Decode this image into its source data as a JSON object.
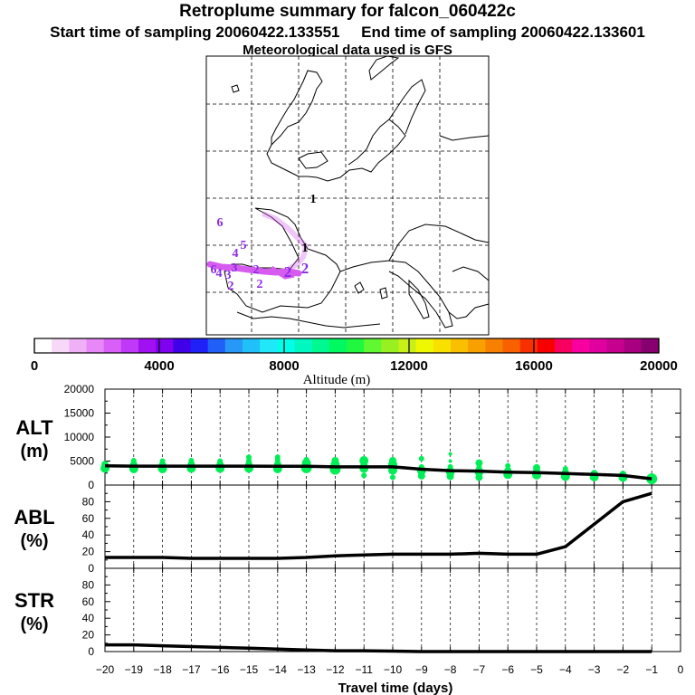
{
  "header": {
    "title": "Retroplume summary for falcon_060422c",
    "start_label": "Start time of sampling 20060422.133551",
    "end_label": "End time of sampling 20060422.133601",
    "met_label": "Meteorological data used is GFS"
  },
  "map": {
    "trajectory_color": "#d65cf0",
    "day_markers": [
      "1",
      "1",
      "2",
      "2",
      "2",
      "3",
      "3",
      "4",
      "4",
      "5",
      "6",
      "6",
      "2",
      "2"
    ]
  },
  "colorbar": {
    "colors": [
      "#ffffff",
      "#f8d8f8",
      "#f0b0f8",
      "#e888f8",
      "#d860f8",
      "#c038f8",
      "#a010f0",
      "#8000f0",
      "#4000e8",
      "#2020f8",
      "#2060f8",
      "#2898f8",
      "#20c0f8",
      "#20e8f8",
      "#00ffe8",
      "#00f8c0",
      "#00f890",
      "#00f860",
      "#20f840",
      "#60f830",
      "#98f020",
      "#c8f018",
      "#f0f800",
      "#f8e000",
      "#f8c000",
      "#f8a000",
      "#f88000",
      "#f86000",
      "#f83000",
      "#f80000",
      "#f80060",
      "#f800a0",
      "#e000a0",
      "#c80090",
      "#a80080",
      "#880070"
    ],
    "tick_labels": [
      "0",
      "4000",
      "8000",
      "12000",
      "16000",
      "20000"
    ],
    "axis_label": "Altitude (m)"
  },
  "chart_data": [
    {
      "type": "line",
      "panel": "ALT",
      "ylabel_line1": "ALT",
      "ylabel_line2": "(m)",
      "ylim": [
        0,
        20000
      ],
      "yticks": [
        0,
        5000,
        10000,
        15000,
        20000
      ],
      "ytick_labels": [
        "0",
        "5000",
        "10000",
        "15000",
        "20000"
      ],
      "x": [
        -20,
        -19,
        -18,
        -17,
        -16,
        -15,
        -14,
        -13,
        -12,
        -11,
        -10,
        -9,
        -8,
        -7,
        -6,
        -5,
        -4,
        -3,
        -2,
        -1
      ],
      "y": [
        4000,
        3950,
        3950,
        3950,
        3950,
        3950,
        3900,
        3900,
        3800,
        3800,
        3800,
        3300,
        3000,
        2900,
        2700,
        2600,
        2400,
        2200,
        2000,
        1300
      ],
      "scatter_color": "#00ee55",
      "scatter": [
        [
          -20,
          3500,
          5
        ],
        [
          -20,
          4300,
          4
        ],
        [
          -19,
          3400,
          5
        ],
        [
          -19,
          4300,
          4
        ],
        [
          -19,
          5100,
          3
        ],
        [
          -18,
          3400,
          5
        ],
        [
          -18,
          4200,
          4
        ],
        [
          -18,
          5000,
          3
        ],
        [
          -17,
          3500,
          5
        ],
        [
          -17,
          4300,
          4
        ],
        [
          -17,
          5100,
          3
        ],
        [
          -16,
          3500,
          5
        ],
        [
          -16,
          4300,
          4
        ],
        [
          -16,
          5000,
          3
        ],
        [
          -15,
          3500,
          5
        ],
        [
          -15,
          4300,
          4
        ],
        [
          -15,
          5100,
          3
        ],
        [
          -15,
          5800,
          3
        ],
        [
          -14,
          3400,
          5
        ],
        [
          -14,
          4300,
          4
        ],
        [
          -14,
          5200,
          3
        ],
        [
          -14,
          5800,
          3
        ],
        [
          -13,
          3600,
          6
        ],
        [
          -13,
          4600,
          5
        ],
        [
          -13,
          5300,
          3
        ],
        [
          -12,
          3300,
          6
        ],
        [
          -12,
          4300,
          5
        ],
        [
          -12,
          5100,
          4
        ],
        [
          -11,
          2000,
          3
        ],
        [
          -11,
          3500,
          5
        ],
        [
          -11,
          4300,
          4
        ],
        [
          -11,
          5100,
          5
        ],
        [
          -10,
          1600,
          3
        ],
        [
          -10,
          3100,
          5
        ],
        [
          -10,
          4300,
          5
        ],
        [
          -10,
          5100,
          4
        ],
        [
          -9,
          1900,
          4
        ],
        [
          -9,
          3000,
          5
        ],
        [
          -9,
          3800,
          3
        ],
        [
          -9,
          5500,
          3
        ],
        [
          -8,
          1800,
          4
        ],
        [
          -8,
          2800,
          5
        ],
        [
          -8,
          3800,
          3
        ],
        [
          -8,
          5000,
          2
        ],
        [
          -8,
          6500,
          2
        ],
        [
          -7,
          1600,
          4
        ],
        [
          -7,
          2800,
          5
        ],
        [
          -7,
          3700,
          3
        ],
        [
          -7,
          4600,
          4
        ],
        [
          -6,
          2200,
          5
        ],
        [
          -6,
          3000,
          4
        ],
        [
          -6,
          4000,
          3
        ],
        [
          -5,
          2100,
          5
        ],
        [
          -5,
          2900,
          4
        ],
        [
          -5,
          3600,
          4
        ],
        [
          -4,
          1800,
          5
        ],
        [
          -4,
          2600,
          4
        ],
        [
          -4,
          3400,
          3
        ],
        [
          -3,
          1700,
          5
        ],
        [
          -3,
          2400,
          4
        ],
        [
          -2,
          1600,
          5
        ],
        [
          -2,
          2200,
          4
        ],
        [
          -1,
          1300,
          6
        ],
        [
          -1,
          1900,
          3
        ]
      ]
    },
    {
      "type": "line",
      "panel": "ABL",
      "ylabel_line1": "ABL",
      "ylabel_line2": "(%)",
      "ylim": [
        0,
        100
      ],
      "yticks": [
        0,
        20,
        40,
        60,
        80
      ],
      "ytick_labels": [
        "0",
        "20",
        "40",
        "60",
        "80"
      ],
      "x": [
        -20,
        -19,
        -18,
        -17,
        -16,
        -15,
        -14,
        -13,
        -12,
        -11,
        -10,
        -9,
        -8,
        -7,
        -6,
        -5,
        -4,
        -3,
        -2,
        -1
      ],
      "y": [
        13,
        13,
        13,
        12,
        12,
        12,
        12,
        13,
        15,
        16,
        17,
        17,
        17,
        18,
        17,
        17,
        26,
        53,
        80,
        90
      ]
    },
    {
      "type": "line",
      "panel": "STR",
      "ylabel_line1": "STR",
      "ylabel_line2": "(%)",
      "ylim": [
        0,
        100
      ],
      "yticks": [
        0,
        20,
        40,
        60,
        80
      ],
      "ytick_labels": [
        "0",
        "20",
        "40",
        "60",
        "80"
      ],
      "x": [
        -20,
        -19,
        -18,
        -17,
        -16,
        -15,
        -14,
        -13,
        -12,
        -11,
        -10,
        -9,
        -8,
        -7,
        -6,
        -5,
        -4,
        -3,
        -2,
        -1
      ],
      "y": [
        8,
        8,
        7,
        6,
        5,
        4,
        3,
        2,
        1,
        1,
        0.5,
        0,
        0,
        0,
        0,
        0,
        0,
        0,
        0,
        0
      ]
    }
  ],
  "x_axis": {
    "xlim": [
      -20,
      0
    ],
    "ticks": [
      -20,
      -19,
      -18,
      -17,
      -16,
      -15,
      -14,
      -13,
      -12,
      -11,
      -10,
      -9,
      -8,
      -7,
      -6,
      -5,
      -4,
      -3,
      -2,
      -1,
      0
    ],
    "tick_labels": [
      "−20",
      "−19",
      "−18",
      "−17",
      "−16",
      "−15",
      "−14",
      "−13",
      "−12",
      "−11",
      "−10",
      "−9",
      "−8",
      "−7",
      "−6",
      "−5",
      "−4",
      "−3",
      "−2",
      "−1",
      "0"
    ],
    "xlabel": "Travel time (days)"
  }
}
